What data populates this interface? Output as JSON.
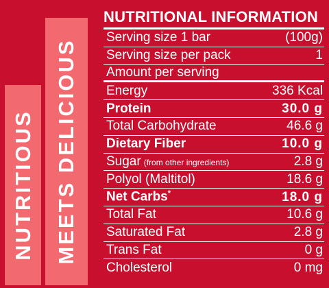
{
  "side_bands": {
    "band_1": "NUTRITIOUS",
    "band_2": "MEETS DELICIOUS"
  },
  "panel": {
    "title": "NUTRITIONAL INFORMATION",
    "rows": [
      {
        "label": "Serving size 1 bar",
        "value": "(100g)"
      },
      {
        "label": "Serving size per pack",
        "value": "1"
      },
      {
        "label": "Amount per serving",
        "value": ""
      },
      {
        "label": "Energy",
        "value": "336 Kcal"
      },
      {
        "label": "Protein",
        "value": "30.0 g"
      },
      {
        "label": "Total Carbohydrate",
        "value": "46.6 g"
      },
      {
        "label": "Dietary Fiber",
        "value": "10.0 g"
      },
      {
        "label": "Sugar",
        "sub": "(from other ingredients)",
        "value": "2.8 g"
      },
      {
        "label": "Polyol (Maltitol)",
        "value": "18.6 g"
      },
      {
        "label": "Net Carbs",
        "sup": "*",
        "value": "18.0 g"
      },
      {
        "label": "Total Fat",
        "value": "10.6 g"
      },
      {
        "label": "Saturated Fat",
        "value": "2.8 g"
      },
      {
        "label": "Trans Fat",
        "value": "0 g"
      },
      {
        "label": "Cholesterol",
        "value": "0 mg"
      }
    ]
  },
  "colors": {
    "background": "#c8102e",
    "band": "#f26a6f",
    "text": "#ffffff"
  }
}
